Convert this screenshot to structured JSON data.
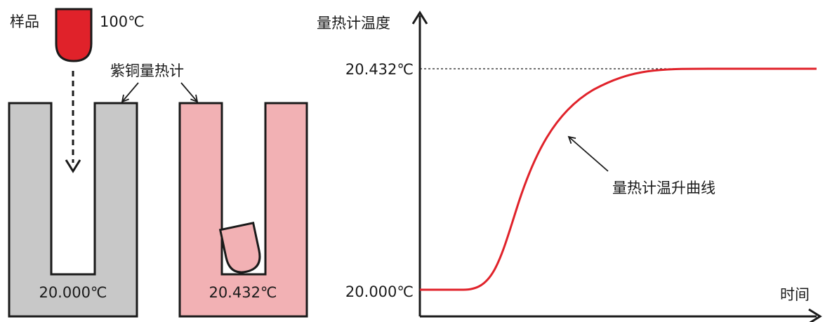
{
  "left_panel": {
    "sample_label": "样品",
    "sample_temp": "100℃",
    "calorimeter_label": "紫铜量热计",
    "before_temp": "20.000℃",
    "after_temp": "20.432℃"
  },
  "chart_data": {
    "type": "line",
    "ylabel": "量热计温度",
    "xlabel": "时间",
    "y_tick_labels": [
      "20.432℃",
      "20.000℃"
    ],
    "y_values": {
      "start": 20.0,
      "end": 20.432
    },
    "curve_annotation": "量热计温升曲线",
    "series": [
      {
        "color": "#e0222a",
        "shape": "sigmoid",
        "start": 20.0,
        "end": 20.432
      }
    ]
  },
  "colors": {
    "sample": "#e0222a",
    "calorimeter_before": "#c8c8c8",
    "calorimeter_after": "#f2b1b4",
    "curve": "#e0222a",
    "stroke": "#1a1a1a"
  }
}
